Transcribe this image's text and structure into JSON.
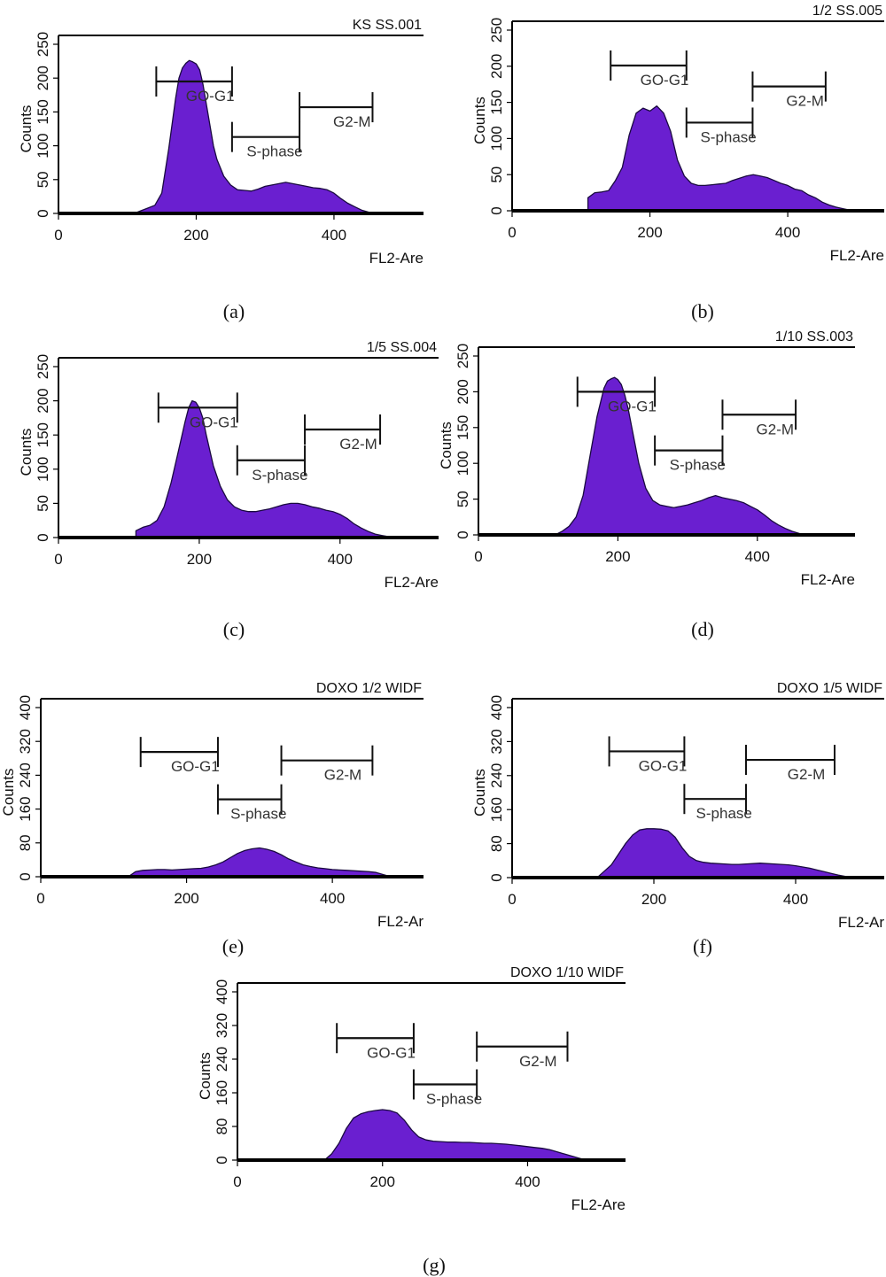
{
  "chart_data": [
    {
      "id": "a",
      "caption": "(a)",
      "type": "area",
      "title": "KS SS.001",
      "xlabel": "FL2-Are",
      "ylabel": "Counts",
      "xlim": [
        0,
        530
      ],
      "ylim": [
        0,
        250
      ],
      "xticks": [
        0,
        200,
        400
      ],
      "yticks": [
        0,
        50,
        100,
        150,
        200,
        250
      ],
      "fill_color": "#6a1fd0",
      "gates": [
        {
          "label": "GO-G1",
          "x1": 142,
          "x2": 252,
          "y": 195
        },
        {
          "label": "S-phase",
          "x1": 252,
          "x2": 350,
          "y": 113
        },
        {
          "label": "G2-M",
          "x1": 350,
          "x2": 456,
          "y": 157
        }
      ],
      "x": [
        110,
        120,
        130,
        140,
        150,
        160,
        170,
        175,
        180,
        185,
        190,
        195,
        200,
        205,
        210,
        215,
        220,
        225,
        230,
        240,
        250,
        260,
        270,
        280,
        290,
        300,
        310,
        320,
        330,
        340,
        350,
        360,
        370,
        380,
        390,
        400,
        410,
        420,
        430,
        440,
        450,
        460,
        470
      ],
      "y": [
        0,
        4,
        8,
        12,
        30,
        95,
        170,
        200,
        215,
        222,
        226,
        224,
        221,
        212,
        190,
        160,
        130,
        100,
        80,
        55,
        42,
        35,
        34,
        33,
        36,
        40,
        42,
        44,
        46,
        44,
        42,
        40,
        38,
        37,
        35,
        30,
        22,
        15,
        10,
        5,
        2,
        1,
        0
      ]
    },
    {
      "id": "b",
      "caption": "(b)",
      "type": "area",
      "title": "1/2 SS.005",
      "xlabel": "FL2-Are",
      "ylabel": "Counts",
      "xlim": [
        0,
        540
      ],
      "ylim": [
        0,
        250
      ],
      "xticks": [
        0,
        200,
        400
      ],
      "yticks": [
        0,
        50,
        100,
        150,
        200,
        250
      ],
      "fill_color": "#6a1fd0",
      "gates": [
        {
          "label": "GO-G1",
          "x1": 143,
          "x2": 253,
          "y": 201
        },
        {
          "label": "S-phase",
          "x1": 253,
          "x2": 349,
          "y": 122
        },
        {
          "label": "G2-M",
          "x1": 349,
          "x2": 455,
          "y": 172
        }
      ],
      "x": [
        110,
        120,
        130,
        140,
        150,
        160,
        170,
        180,
        190,
        200,
        210,
        220,
        230,
        240,
        250,
        260,
        270,
        280,
        290,
        300,
        310,
        320,
        330,
        340,
        350,
        360,
        370,
        380,
        390,
        400,
        410,
        420,
        430,
        440,
        450,
        460,
        470,
        480,
        490,
        500
      ],
      "y": [
        18,
        25,
        26,
        28,
        42,
        60,
        105,
        135,
        142,
        138,
        145,
        135,
        110,
        70,
        48,
        38,
        35,
        35,
        36,
        37,
        38,
        42,
        45,
        48,
        50,
        48,
        46,
        42,
        38,
        35,
        30,
        28,
        22,
        18,
        12,
        8,
        5,
        3,
        1,
        0
      ]
    },
    {
      "id": "c",
      "caption": "(c)",
      "type": "area",
      "title": "1/5 SS.004",
      "xlabel": "FL2-Are",
      "ylabel": "Counts",
      "xlim": [
        0,
        540
      ],
      "ylim": [
        0,
        250
      ],
      "xticks": [
        0,
        200,
        400
      ],
      "yticks": [
        0,
        50,
        100,
        150,
        200,
        250
      ],
      "fill_color": "#6a1fd0",
      "gates": [
        {
          "label": "GO-G1",
          "x1": 142,
          "x2": 254,
          "y": 190
        },
        {
          "label": "S-phase",
          "x1": 254,
          "x2": 350,
          "y": 113
        },
        {
          "label": "G2-M",
          "x1": 350,
          "x2": 457,
          "y": 158
        }
      ],
      "x": [
        110,
        120,
        130,
        140,
        150,
        160,
        170,
        180,
        185,
        190,
        195,
        200,
        205,
        210,
        220,
        230,
        240,
        250,
        260,
        270,
        280,
        290,
        300,
        310,
        320,
        330,
        340,
        350,
        360,
        370,
        380,
        390,
        400,
        410,
        420,
        430,
        440,
        450,
        460,
        470,
        480
      ],
      "y": [
        10,
        15,
        18,
        25,
        45,
        80,
        125,
        170,
        190,
        200,
        198,
        190,
        175,
        150,
        105,
        75,
        55,
        45,
        40,
        38,
        38,
        40,
        42,
        45,
        48,
        50,
        50,
        48,
        45,
        43,
        40,
        38,
        34,
        28,
        20,
        14,
        9,
        5,
        3,
        1,
        0
      ]
    },
    {
      "id": "d",
      "caption": "(d)",
      "type": "area",
      "title": "1/10 SS.003",
      "xlabel": "FL2-Are",
      "ylabel": "Counts",
      "xlim": [
        0,
        540
      ],
      "ylim": [
        0,
        250
      ],
      "xticks": [
        0,
        200,
        400
      ],
      "yticks": [
        0,
        50,
        100,
        150,
        200,
        250
      ],
      "fill_color": "#6a1fd0",
      "gates": [
        {
          "label": "GO-G1",
          "x1": 142,
          "x2": 253,
          "y": 200
        },
        {
          "label": "S-phase",
          "x1": 253,
          "x2": 350,
          "y": 118
        },
        {
          "label": "G2-M",
          "x1": 350,
          "x2": 455,
          "y": 168
        }
      ],
      "x": [
        110,
        120,
        130,
        140,
        150,
        160,
        170,
        180,
        185,
        190,
        195,
        200,
        205,
        210,
        215,
        220,
        230,
        240,
        250,
        260,
        270,
        280,
        290,
        300,
        310,
        320,
        330,
        340,
        350,
        360,
        370,
        380,
        390,
        400,
        410,
        420,
        430,
        440,
        450,
        460,
        470
      ],
      "y": [
        0,
        5,
        12,
        25,
        55,
        110,
        165,
        205,
        215,
        218,
        220,
        217,
        210,
        195,
        175,
        150,
        100,
        65,
        48,
        42,
        40,
        38,
        40,
        42,
        45,
        48,
        52,
        55,
        52,
        50,
        48,
        45,
        40,
        35,
        28,
        20,
        14,
        9,
        5,
        2,
        0
      ]
    },
    {
      "id": "e",
      "caption": "(e)",
      "type": "area",
      "title": "DOXO 1/2 WIDF",
      "xlabel": "FL2-Ar",
      "ylabel": "Counts",
      "xlim": [
        0,
        525
      ],
      "ylim": [
        0,
        400
      ],
      "xticks": [
        0,
        200,
        400
      ],
      "yticks": [
        0,
        80,
        160,
        240,
        320,
        400
      ],
      "fill_color": "#6a1fd0",
      "gates": [
        {
          "label": "GO-G1",
          "x1": 137,
          "x2": 243,
          "y": 295
        },
        {
          "label": "S-phase",
          "x1": 243,
          "x2": 330,
          "y": 183
        },
        {
          "label": "G2-M",
          "x1": 330,
          "x2": 455,
          "y": 275
        }
      ],
      "x": [
        120,
        130,
        140,
        150,
        160,
        170,
        180,
        190,
        200,
        210,
        220,
        230,
        240,
        250,
        260,
        270,
        280,
        290,
        300,
        310,
        320,
        330,
        340,
        350,
        360,
        370,
        380,
        390,
        400,
        410,
        420,
        430,
        440,
        450,
        460,
        470,
        480
      ],
      "y": [
        0,
        12,
        15,
        16,
        17,
        17,
        16,
        17,
        18,
        19,
        20,
        23,
        28,
        35,
        45,
        55,
        62,
        66,
        68,
        65,
        60,
        52,
        42,
        35,
        28,
        24,
        21,
        19,
        17,
        16,
        15,
        14,
        13,
        12,
        10,
        5,
        0
      ]
    },
    {
      "id": "f",
      "caption": "(f)",
      "type": "area",
      "title": "DOXO 1/5 WIDF",
      "xlabel": "FL2-Ar",
      "ylabel": "Counts",
      "xlim": [
        0,
        525
      ],
      "ylim": [
        0,
        400
      ],
      "xticks": [
        0,
        200,
        400
      ],
      "yticks": [
        0,
        80,
        160,
        240,
        320,
        400
      ],
      "fill_color": "#6a1fd0",
      "gates": [
        {
          "label": "GO-G1",
          "x1": 137,
          "x2": 243,
          "y": 297
        },
        {
          "label": "S-phase",
          "x1": 243,
          "x2": 330,
          "y": 185
        },
        {
          "label": "G2-M",
          "x1": 330,
          "x2": 455,
          "y": 277
        }
      ],
      "x": [
        120,
        130,
        140,
        150,
        160,
        170,
        180,
        190,
        200,
        210,
        220,
        230,
        240,
        250,
        260,
        270,
        280,
        290,
        300,
        310,
        320,
        330,
        340,
        350,
        360,
        370,
        380,
        390,
        400,
        410,
        420,
        430,
        440,
        450,
        460,
        470,
        480
      ],
      "y": [
        0,
        15,
        30,
        55,
        80,
        100,
        112,
        115,
        115,
        114,
        110,
        95,
        70,
        50,
        40,
        36,
        34,
        33,
        32,
        31,
        31,
        32,
        33,
        34,
        33,
        32,
        31,
        30,
        28,
        25,
        22,
        18,
        14,
        10,
        6,
        3,
        0
      ]
    },
    {
      "id": "g",
      "caption": "(g)",
      "type": "area",
      "title": "DOXO 1/10 WIDF",
      "xlabel": "FL2-Are",
      "ylabel": "Counts",
      "xlim": [
        0,
        535
      ],
      "ylim": [
        0,
        400
      ],
      "xticks": [
        0,
        200,
        400
      ],
      "yticks": [
        0,
        80,
        160,
        240,
        320,
        400
      ],
      "fill_color": "#6a1fd0",
      "gates": [
        {
          "label": "GO-G1",
          "x1": 137,
          "x2": 243,
          "y": 290
        },
        {
          "label": "S-phase",
          "x1": 243,
          "x2": 330,
          "y": 180
        },
        {
          "label": "G2-M",
          "x1": 330,
          "x2": 455,
          "y": 270
        }
      ],
      "x": [
        120,
        130,
        140,
        150,
        160,
        170,
        180,
        190,
        200,
        210,
        220,
        230,
        240,
        250,
        260,
        270,
        280,
        290,
        300,
        310,
        320,
        330,
        340,
        350,
        360,
        370,
        380,
        390,
        400,
        410,
        420,
        430,
        440,
        450,
        460,
        470,
        480
      ],
      "y": [
        0,
        15,
        40,
        75,
        100,
        110,
        115,
        118,
        120,
        118,
        112,
        95,
        72,
        55,
        48,
        45,
        44,
        43,
        43,
        42,
        42,
        41,
        40,
        40,
        39,
        38,
        36,
        34,
        32,
        30,
        28,
        25,
        20,
        15,
        10,
        5,
        0
      ]
    }
  ]
}
